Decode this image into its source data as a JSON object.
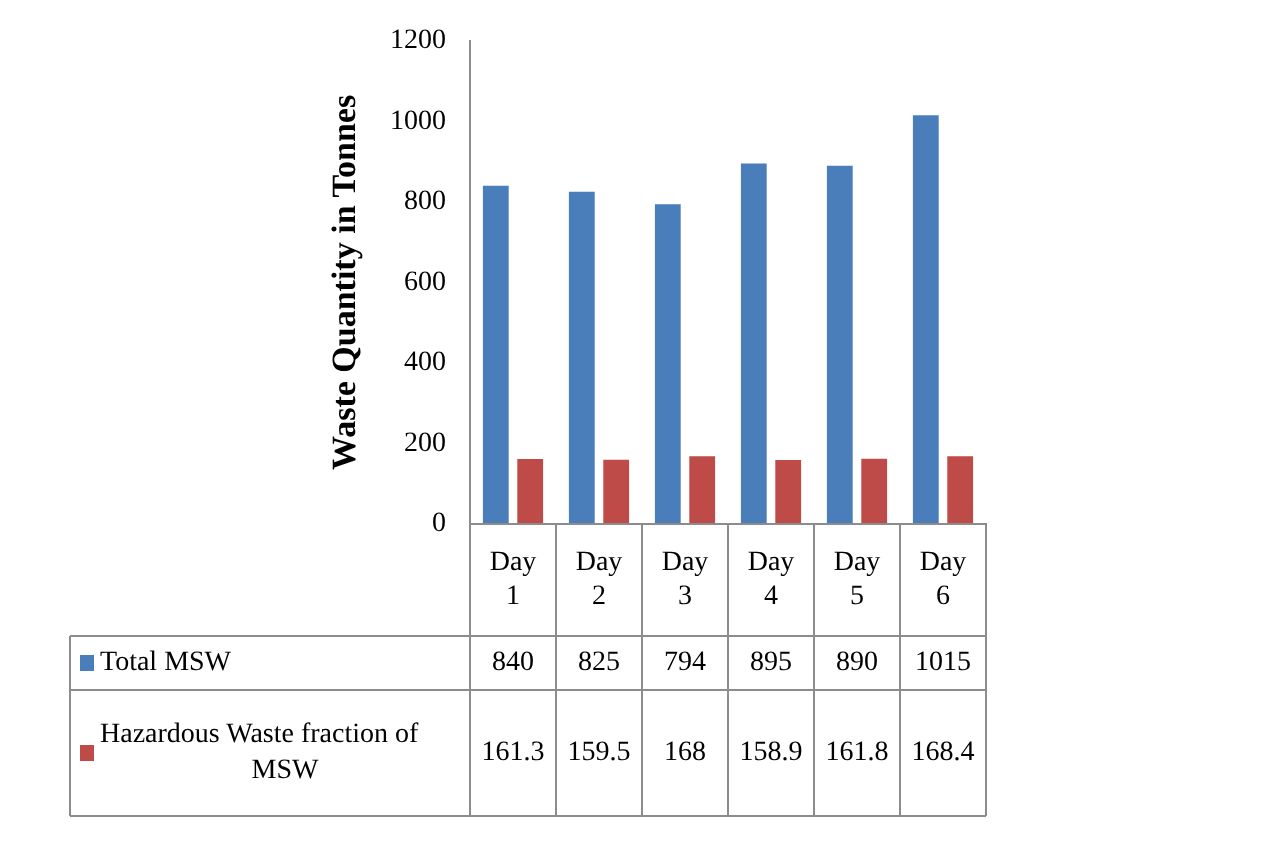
{
  "chart_data": {
    "type": "bar",
    "ylabel": "Waste Quantity in Tonnes",
    "categories": [
      "Day 1",
      "Day 2",
      "Day 3",
      "Day 4",
      "Day 5",
      "Day 6"
    ],
    "series": [
      {
        "name": "Total MSW",
        "color": "#4a7ebb",
        "values": [
          840,
          825,
          794,
          895,
          890,
          1015
        ]
      },
      {
        "name": "Hazardous Waste fraction of MSW",
        "color": "#be4b48",
        "values": [
          161.3,
          159.5,
          168,
          158.9,
          161.8,
          168.4
        ]
      }
    ],
    "ylim": [
      0,
      1200
    ],
    "yticks": [
      0,
      200,
      400,
      600,
      800,
      1000,
      1200
    ],
    "grid": false,
    "legend": "bottom left",
    "data_labels": true
  }
}
